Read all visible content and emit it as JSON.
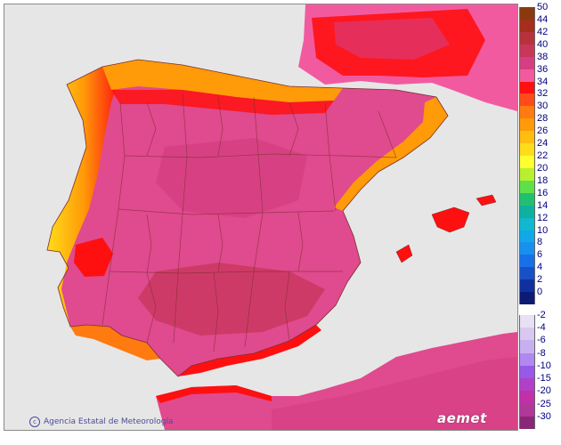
{
  "credit": {
    "text": "Agencia Estatal de Meteorología",
    "icon": "copyright-icon"
  },
  "brand": {
    "text": "aemet"
  },
  "legend": {
    "bands": [
      {
        "label": "50",
        "color": "#8b3a0f"
      },
      {
        "label": "44",
        "color": "#a62e1c"
      },
      {
        "label": "42",
        "color": "#b8323c"
      },
      {
        "label": "40",
        "color": "#c8365a"
      },
      {
        "label": "38",
        "color": "#d63e84"
      },
      {
        "label": "36",
        "color": "#f25aa0"
      },
      {
        "label": "34",
        "color": "#ff1010"
      },
      {
        "label": "32",
        "color": "#ff4a1a"
      },
      {
        "label": "30",
        "color": "#ff7a10"
      },
      {
        "label": "28",
        "color": "#ff9a08"
      },
      {
        "label": "26",
        "color": "#ffbd10"
      },
      {
        "label": "24",
        "color": "#ffdc1a"
      },
      {
        "label": "22",
        "color": "#ffff30"
      },
      {
        "label": "20",
        "color": "#b8f030"
      },
      {
        "label": "18",
        "color": "#5ee048"
      },
      {
        "label": "16",
        "color": "#20c070"
      },
      {
        "label": "14",
        "color": "#10b0a0"
      },
      {
        "label": "12",
        "color": "#10b8d0"
      },
      {
        "label": "10",
        "color": "#10a8e8"
      },
      {
        "label": "8",
        "color": "#1890f0"
      },
      {
        "label": "6",
        "color": "#1870e8"
      },
      {
        "label": "4",
        "color": "#1850c8"
      },
      {
        "label": "2",
        "color": "#1030a0"
      },
      {
        "label": "0",
        "color": "#0c1a78"
      },
      {
        "label": "-2",
        "color": "#e8e0f4"
      },
      {
        "label": "-4",
        "color": "#d8c8f0"
      },
      {
        "label": "-6",
        "color": "#c8b0f0"
      },
      {
        "label": "-8",
        "color": "#b088f0"
      },
      {
        "label": "-10",
        "color": "#9858e8"
      },
      {
        "label": "-15",
        "color": "#b040c8"
      },
      {
        "label": "-20",
        "color": "#c030a8"
      },
      {
        "label": "-25",
        "color": "#b03898"
      },
      {
        "label": "-30",
        "color": "#8a2878"
      }
    ]
  },
  "colors": {
    "sea": "#e6e6e6",
    "land_main": "#e04a8e",
    "land_hot": "#d03c7c",
    "coast_warm": "#ff7a10",
    "coast_mild": "#ffdc1a",
    "border": "#7a2e2e",
    "islands": "#ff1010"
  }
}
